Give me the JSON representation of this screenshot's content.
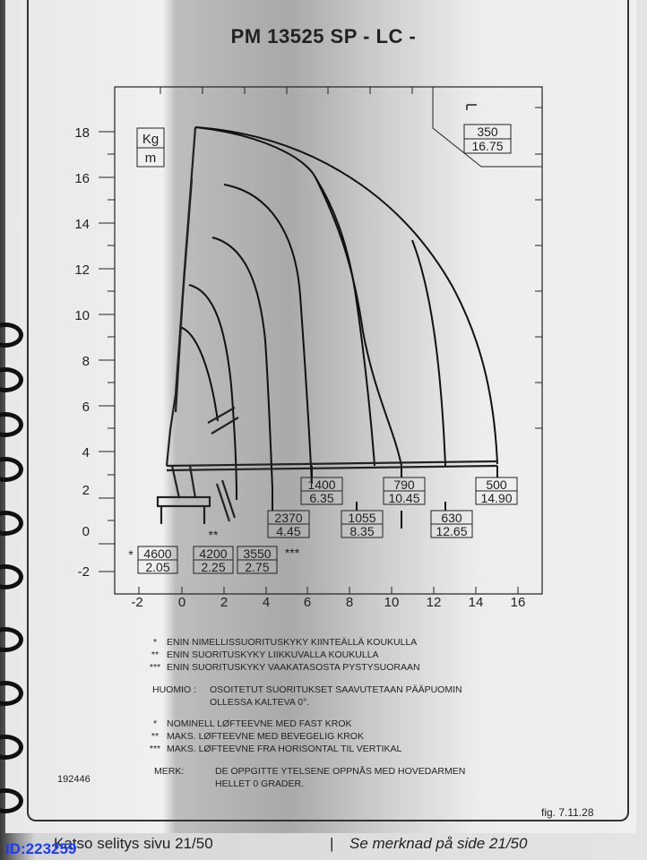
{
  "title": "PM 13525 SP - LC -",
  "units": {
    "load": "Kg",
    "dist": "m"
  },
  "y_ticks": [
    "18",
    "16",
    "14",
    "12",
    "10",
    "8",
    "6",
    "4",
    "2",
    "0",
    "-2"
  ],
  "x_ticks": [
    "-2",
    "0",
    "2",
    "4",
    "6",
    "8",
    "10",
    "12",
    "14",
    "16"
  ],
  "corner_label": {
    "load": "350",
    "reach": "16.75"
  },
  "curve_labels": [
    {
      "load": "1400",
      "reach": "6.35"
    },
    {
      "load": "790",
      "reach": "10.45"
    },
    {
      "load": "500",
      "reach": "14.90"
    },
    {
      "load": "2370",
      "reach": "4.45"
    },
    {
      "load": "1055",
      "reach": "8.35"
    },
    {
      "load": "630",
      "reach": "12.65"
    }
  ],
  "base_labels": [
    {
      "prefix": "*",
      "load": "4600",
      "reach": "2.05"
    },
    {
      "load": "4200",
      "reach": "2.25"
    },
    {
      "load": "3550",
      "reach": "2.75",
      "suffix": "***"
    }
  ],
  "double_star": "**",
  "notes_fi": [
    {
      "mark": "*",
      "text": "ENIN NIMELLISSUORITUSKYKY KIINTEÄLLÄ KOUKULLA"
    },
    {
      "mark": "**",
      "text": "ENIN SUORITUSKYKY LIIKKUVALLA KOUKULLA"
    },
    {
      "mark": "***",
      "text": "ENIN SUORITUSKYKY VAAKATASOSTA PYSTYSUORAAN"
    }
  ],
  "huomio": {
    "label": "HUOMIO :",
    "line1": "OSOITETUT SUORITUKSET SAAVUTETAAN PÄÄPUOMIN",
    "line2": "OLLESSA KALTEVA 0°."
  },
  "notes_no": [
    {
      "mark": "*",
      "text": "NOMINELL LØFTEEVNE MED FAST KROK"
    },
    {
      "mark": "**",
      "text": "MAKS. LØFTEEVNE MED BEVEGELIG KROK"
    },
    {
      "mark": "***",
      "text": "MAKS. LØFTEEVNE FRA HORISONTAL TIL VERTIKAL"
    }
  ],
  "merk": {
    "label": "MERK:",
    "line1": "DE OPPGITTE YTELSENE OPPNÅS MED HOVEDARMEN",
    "line2": "HELLET 0 GRADER."
  },
  "doc_code": "192446",
  "fig": "fig. 7.11.28",
  "footer_left": "Katso selitys sivu 21/50",
  "footer_sep": "|",
  "footer_right": "Se merknad på side 21/50",
  "watermark_id": "ID:223259"
}
